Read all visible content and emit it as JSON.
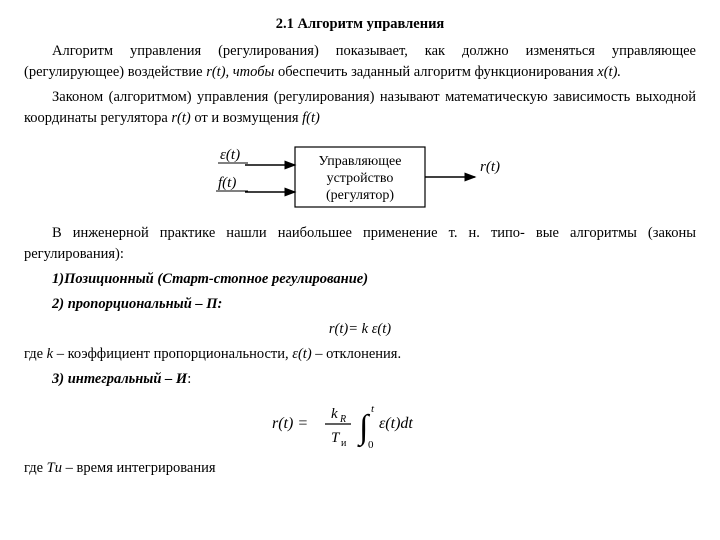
{
  "heading": "2.1 Алгоритм управления",
  "para1_a": "Алгоритм управления (регулирования) показывает, как должно изменяться управляющее (регулирующее) воздействие ",
  "para1_rt": "r(t), чтобы",
  "para1_b": " обеспечить заданный алгоритм функционирования ",
  "para1_xt": "x(t).",
  "para2_a": "Законом (алгоритмом) управления (регулирования) называют математическую зависимость выходной координаты регулятора ",
  "para2_rt": "r(t)",
  "para2_b": " от и возмущения ",
  "para2_ft": "f(t)",
  "diagram": {
    "eps": "ε(t)",
    "f": "f(t)",
    "box1": "Управляющее",
    "box2": "устройство",
    "box3": "(регулятор)",
    "r": "r(t)",
    "stroke": "#000000",
    "font": "italic 15px Georgia"
  },
  "para3": "В инженерной практике нашли наибольшее применение т. н. типо- вые алгоритмы (законы регулирования):",
  "item1": "1)Позиционный (Старт-стопное регулирование)",
  "item2": "2) пропорциональный – П:",
  "eq1": "r(t)= k ε(t)",
  "para4_a": "где ",
  "para4_k": "k",
  "para4_b": " – коэффициент пропорциональности, ",
  "para4_eps": "ε(t)",
  "para4_c": " – отклонения.",
  "item3_a": "3) интегральный – И",
  "item3_b": ":",
  "formula": {
    "rt": "r(t) =",
    "kr": "k",
    "krsub": "R",
    "ti": "T",
    "tisub": "и",
    "tup": "t",
    "tlow": "0",
    "int_body": "ε(t)dt",
    "color": "#000000"
  },
  "para5_a": "где ",
  "para5_ti": "Tи",
  "para5_b": " – время интегрирования"
}
